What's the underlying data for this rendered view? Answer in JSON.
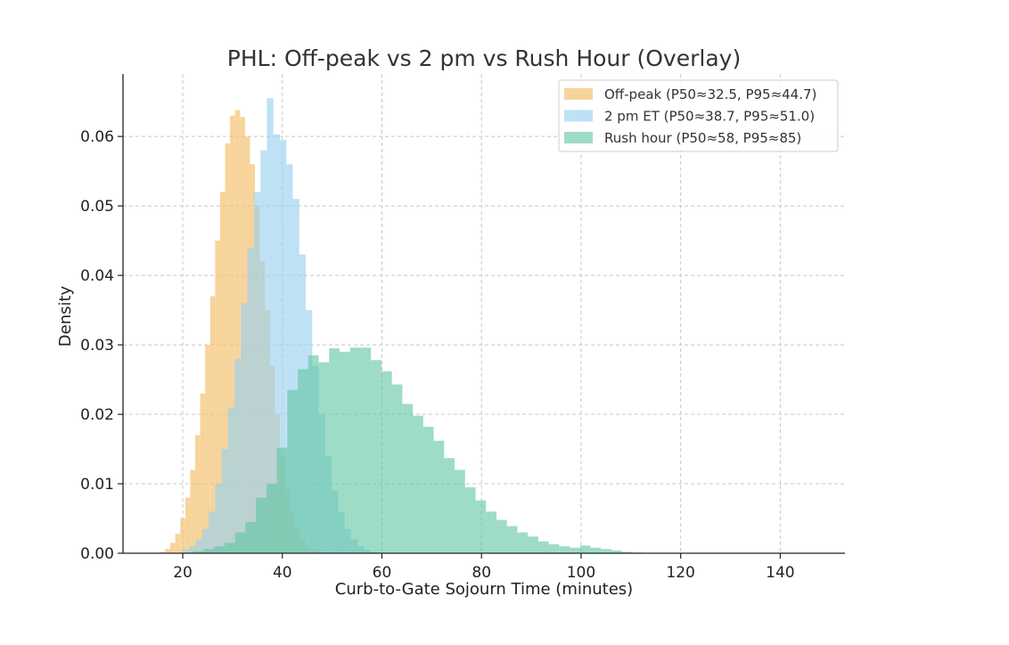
{
  "chart_data": {
    "type": "histogram",
    "title": "PHL: Off-peak vs 2 pm vs Rush Hour (Overlay)",
    "xlabel": "Curb-to-Gate Sojourn Time (minutes)",
    "ylabel": "Density",
    "xlim": [
      8,
      153
    ],
    "ylim": [
      0,
      0.069
    ],
    "xticks": [
      20,
      40,
      60,
      80,
      100,
      120,
      140
    ],
    "yticks": [
      0.0,
      0.01,
      0.02,
      0.03,
      0.04,
      0.05,
      0.06
    ],
    "grid": true,
    "legend_position": "top-right",
    "series": [
      {
        "name": "Off-peak (P50≈32.5, P95≈44.7)",
        "color": "#f3c270",
        "opacity": 0.7,
        "bin_start": 15.5,
        "bin_width": 1,
        "values": [
          0.0002,
          0.0006,
          0.0015,
          0.0028,
          0.005,
          0.008,
          0.012,
          0.017,
          0.023,
          0.03,
          0.037,
          0.045,
          0.052,
          0.059,
          0.063,
          0.0638,
          0.0628,
          0.06,
          0.056,
          0.05,
          0.042,
          0.035,
          0.027,
          0.02,
          0.014,
          0.0092,
          0.006,
          0.0036,
          0.002,
          0.0011,
          0.0006,
          0.0003
        ]
      },
      {
        "name": "2 pm ET (P50≈38.7, P95≈51.0)",
        "color": "#9bd1f0",
        "opacity": 0.65,
        "bin_start": 20,
        "bin_width": 1.3,
        "values": [
          0.0005,
          0.001,
          0.002,
          0.0035,
          0.006,
          0.01,
          0.015,
          0.021,
          0.028,
          0.036,
          0.044,
          0.052,
          0.058,
          0.0655,
          0.0603,
          0.0595,
          0.056,
          0.051,
          0.043,
          0.035,
          0.027,
          0.02,
          0.014,
          0.009,
          0.006,
          0.0035,
          0.002,
          0.001,
          0.0005,
          0.0002
        ]
      },
      {
        "name": "Rush hour (P50≈58, P95≈85)",
        "color": "#5ec4a2",
        "opacity": 0.6,
        "bin_start": 20,
        "bin_width": 2.1,
        "values": [
          0.0001,
          0.0003,
          0.0006,
          0.001,
          0.0015,
          0.003,
          0.0045,
          0.008,
          0.01,
          0.0152,
          0.0235,
          0.0265,
          0.0285,
          0.0275,
          0.0295,
          0.029,
          0.0296,
          0.0296,
          0.0278,
          0.0262,
          0.0243,
          0.0215,
          0.0198,
          0.0182,
          0.0162,
          0.0137,
          0.012,
          0.0095,
          0.0076,
          0.006,
          0.0048,
          0.0039,
          0.003,
          0.0024,
          0.0017,
          0.0013,
          0.001,
          0.0008,
          0.0011,
          0.0008,
          0.0006,
          0.0004,
          0.0002,
          0.0001,
          5e-05
        ]
      }
    ]
  }
}
